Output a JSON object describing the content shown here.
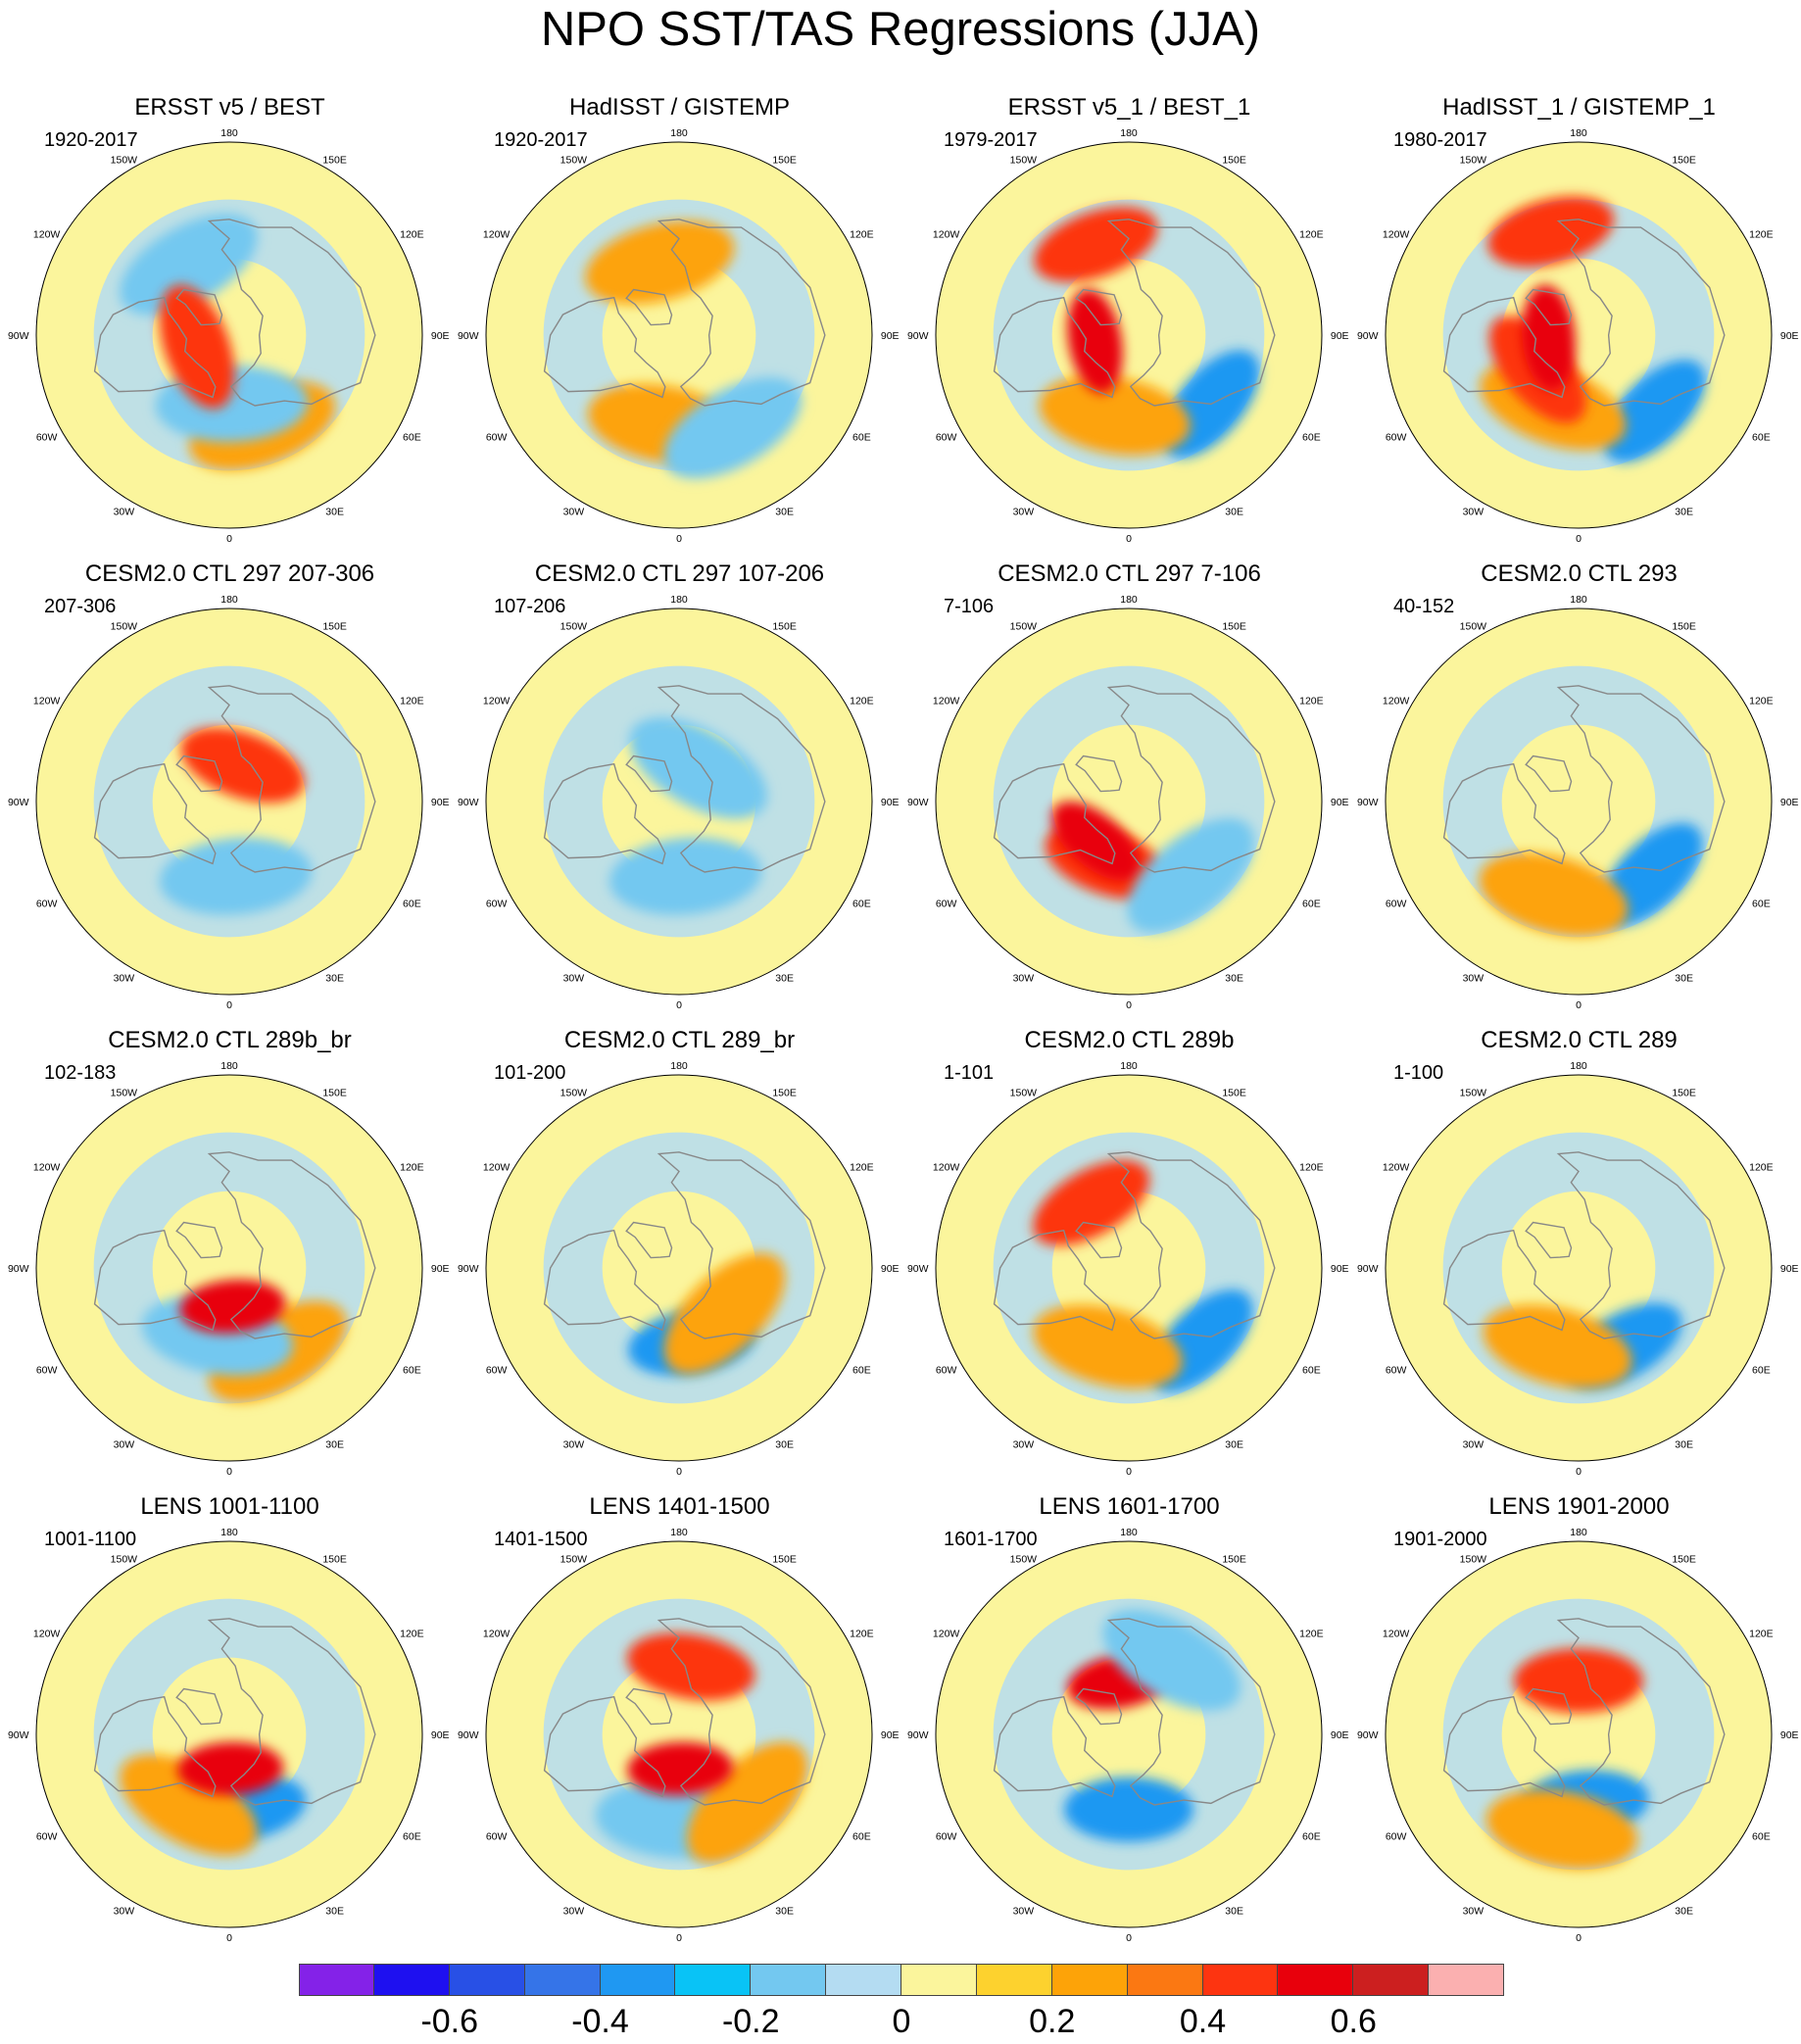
{
  "title": "NPO SST/TAS Regressions (JJA)",
  "lon_labels": [
    "180",
    "150E",
    "120E",
    "90E",
    "60E",
    "30E",
    "0",
    "30W",
    "60W",
    "90W",
    "120W",
    "150W"
  ],
  "colorbar": {
    "colors": [
      "#8422e8",
      "#1e10f0",
      "#2850e6",
      "#3574e8",
      "#1f98f2",
      "#09c3f6",
      "#73c8f0",
      "#b4dcf2",
      "#fbf59c",
      "#fdd22e",
      "#fda308",
      "#fb7812",
      "#fd3410",
      "#e8000c",
      "#cc1f1f",
      "#fbb0b0"
    ],
    "tick_labels": [
      "-0.6",
      "-0.4",
      "-0.2",
      "0",
      "0.2",
      "0.4",
      "0.6"
    ],
    "tick_edges": [
      2,
      4,
      6,
      8,
      10,
      12,
      14
    ]
  },
  "panels": [
    {
      "title": "ERSST v5 / BEST",
      "period": "1920-2017",
      "anomalies": [
        {
          "lon": 160,
          "lat": 45,
          "v": 0.2
        },
        {
          "lon": 178,
          "lat": 58,
          "v": -0.2
        },
        {
          "lon": -30,
          "lat": 52,
          "v": -0.2
        },
        {
          "lon": -110,
          "lat": 74,
          "v": 0.4
        }
      ]
    },
    {
      "title": "HadISST / GISTEMP",
      "period": "1920-2017",
      "anomalies": [
        {
          "lon": -170,
          "lat": 48,
          "v": 0.2
        },
        {
          "lon": 150,
          "lat": 40,
          "v": -0.2
        },
        {
          "lon": -15,
          "lat": 55,
          "v": 0.2
        }
      ]
    },
    {
      "title": "ERSST v5_1 / BEST_1",
      "period": "1979-2017",
      "anomalies": [
        {
          "lon": 130,
          "lat": 40,
          "v": -0.4
        },
        {
          "lon": -170,
          "lat": 52,
          "v": 0.2
        },
        {
          "lon": -20,
          "lat": 45,
          "v": 0.4
        },
        {
          "lon": -100,
          "lat": 74,
          "v": 0.6
        }
      ]
    },
    {
      "title": "HadISST_1 / GISTEMP_1",
      "period": "1980-2017",
      "anomalies": [
        {
          "lon": 135,
          "lat": 40,
          "v": -0.4
        },
        {
          "lon": -160,
          "lat": 55,
          "v": 0.2
        },
        {
          "lon": -15,
          "lat": 40,
          "v": 0.4
        },
        {
          "lon": -130,
          "lat": 65,
          "v": 0.4
        },
        {
          "lon": -95,
          "lat": 76,
          "v": 0.6
        }
      ]
    },
    {
      "title": "CESM2.0 CTL 297 207-306",
      "period": "207-306",
      "anomalies": [
        {
          "lon": 175,
          "lat": 55,
          "v": -0.2
        },
        {
          "lon": 20,
          "lat": 72,
          "v": 0.4
        }
      ]
    },
    {
      "title": "CESM2.0 CTL 297 107-206",
      "period": "107-206",
      "anomalies": [
        {
          "lon": 175,
          "lat": 55,
          "v": -0.2
        },
        {
          "lon": 30,
          "lat": 72,
          "v": -0.2
        }
      ]
    },
    {
      "title": "CESM2.0 CTL 297 7-106",
      "period": "7-106",
      "anomalies": [
        {
          "lon": -160,
          "lat": 60,
          "v": 0.4
        },
        {
          "lon": -140,
          "lat": 66,
          "v": 0.6
        },
        {
          "lon": 140,
          "lat": 45,
          "v": -0.2
        }
      ]
    },
    {
      "title": "CESM2.0 CTL 293",
      "period": "40-152",
      "anomalies": [
        {
          "lon": 135,
          "lat": 42,
          "v": -0.4
        },
        {
          "lon": -165,
          "lat": 45,
          "v": 0.2
        }
      ]
    },
    {
      "title": "CESM2.0 CTL 289b_br",
      "period": "102-183",
      "anomalies": [
        {
          "lon": 150,
          "lat": 45,
          "v": 0.2
        },
        {
          "lon": -170,
          "lat": 58,
          "v": -0.2
        },
        {
          "lon": 175,
          "lat": 72,
          "v": 0.6
        }
      ]
    },
    {
      "title": "CESM2.0 CTL 289_br",
      "period": "101-200",
      "anomalies": [
        {
          "lon": 170,
          "lat": 55,
          "v": -0.4
        },
        {
          "lon": 135,
          "lat": 60,
          "v": 0.2
        }
      ]
    },
    {
      "title": "CESM2.0 CTL 289b",
      "period": "1-101",
      "anomalies": [
        {
          "lon": 135,
          "lat": 42,
          "v": -0.4
        },
        {
          "lon": -165,
          "lat": 52,
          "v": 0.2
        },
        {
          "lon": -30,
          "lat": 55,
          "v": 0.4
        }
      ]
    },
    {
      "title": "CESM2.0 CTL 289",
      "period": "1-100",
      "anomalies": [
        {
          "lon": 150,
          "lat": 48,
          "v": -0.4
        },
        {
          "lon": -165,
          "lat": 52,
          "v": 0.2
        }
      ]
    },
    {
      "title": "LENS 1001-1100",
      "period": "1001-1100",
      "anomalies": [
        {
          "lon": 170,
          "lat": 55,
          "v": -0.4
        },
        {
          "lon": -150,
          "lat": 52,
          "v": 0.2
        },
        {
          "lon": 178,
          "lat": 74,
          "v": 0.6
        }
      ]
    },
    {
      "title": "LENS 1401-1500",
      "period": "1401-1500",
      "anomalies": [
        {
          "lon": -175,
          "lat": 50,
          "v": -0.2
        },
        {
          "lon": 135,
          "lat": 45,
          "v": 0.2
        },
        {
          "lon": 10,
          "lat": 58,
          "v": 0.4
        },
        {
          "lon": 178,
          "lat": 74,
          "v": 0.6
        }
      ]
    },
    {
      "title": "LENS 1601-1700",
      "period": "1601-1700",
      "anomalies": [
        {
          "lon": 180,
          "lat": 55,
          "v": -0.4
        },
        {
          "lon": -10,
          "lat": 65,
          "v": 0.6
        },
        {
          "lon": 30,
          "lat": 50,
          "v": -0.2
        }
      ]
    },
    {
      "title": "LENS 1901-2000",
      "period": "1901-2000",
      "anomalies": [
        {
          "lon": 175,
          "lat": 58,
          "v": -0.4
        },
        {
          "lon": -170,
          "lat": 45,
          "v": 0.2
        },
        {
          "lon": 0,
          "lat": 65,
          "v": 0.4
        }
      ]
    }
  ]
}
